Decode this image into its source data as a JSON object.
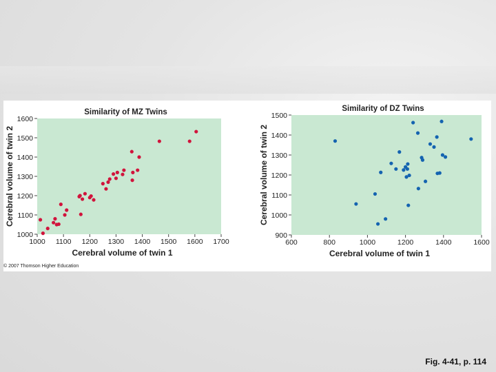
{
  "figure": {
    "caption": "Fig. 4-41, p. 114",
    "credit": "© 2007 Thomson Higher Education"
  },
  "colors": {
    "plot_background": "#c9e8d2",
    "mz_point": "#d1143c",
    "dz_point": "#1463b0"
  },
  "chart_data": [
    {
      "type": "scatter",
      "title": "Similarity of MZ Twins",
      "xlabel": "Cerebral volume of twin 1",
      "ylabel": "Cerebral volume of twin 2",
      "xlim": [
        1000,
        1700
      ],
      "ylim": [
        1000,
        1600
      ],
      "xticks": [
        1000,
        1100,
        1200,
        1300,
        1400,
        1500,
        1600,
        1700
      ],
      "yticks": [
        1000,
        1100,
        1200,
        1300,
        1400,
        1500,
        1600
      ],
      "grid": false,
      "color": "#d1143c",
      "points": [
        [
          1012,
          1075
        ],
        [
          1022,
          1005
        ],
        [
          1040,
          1030
        ],
        [
          1062,
          1060
        ],
        [
          1068,
          1080
        ],
        [
          1074,
          1050
        ],
        [
          1082,
          1052
        ],
        [
          1090,
          1155
        ],
        [
          1105,
          1100
        ],
        [
          1112,
          1125
        ],
        [
          1160,
          1195
        ],
        [
          1163,
          1200
        ],
        [
          1166,
          1103
        ],
        [
          1172,
          1182
        ],
        [
          1182,
          1210
        ],
        [
          1200,
          1190
        ],
        [
          1205,
          1198
        ],
        [
          1215,
          1178
        ],
        [
          1250,
          1262
        ],
        [
          1262,
          1235
        ],
        [
          1270,
          1270
        ],
        [
          1276,
          1286
        ],
        [
          1290,
          1312
        ],
        [
          1300,
          1290
        ],
        [
          1305,
          1320
        ],
        [
          1325,
          1310
        ],
        [
          1330,
          1332
        ],
        [
          1360,
          1428
        ],
        [
          1362,
          1280
        ],
        [
          1364,
          1320
        ],
        [
          1382,
          1332
        ],
        [
          1388,
          1400
        ],
        [
          1465,
          1482
        ],
        [
          1580,
          1482
        ],
        [
          1605,
          1532
        ]
      ]
    },
    {
      "type": "scatter",
      "title": "Similarity of DZ Twins",
      "xlabel": "Cerebral volume of twin 1",
      "ylabel": "Cerebral volume of twin 2",
      "xlim": [
        600,
        1600
      ],
      "ylim": [
        900,
        1500
      ],
      "xticks": [
        600,
        800,
        1000,
        1200,
        1400,
        1600
      ],
      "yticks": [
        900,
        1000,
        1100,
        1200,
        1300,
        1400,
        1500
      ],
      "grid": false,
      "color": "#1463b0",
      "points": [
        [
          830,
          1370
        ],
        [
          940,
          1055
        ],
        [
          1040,
          1105
        ],
        [
          1055,
          955
        ],
        [
          1070,
          1213
        ],
        [
          1095,
          980
        ],
        [
          1125,
          1258
        ],
        [
          1150,
          1230
        ],
        [
          1168,
          1315
        ],
        [
          1190,
          1225
        ],
        [
          1200,
          1240
        ],
        [
          1205,
          1190
        ],
        [
          1210,
          1230
        ],
        [
          1212,
          1255
        ],
        [
          1215,
          1048
        ],
        [
          1220,
          1198
        ],
        [
          1240,
          1462
        ],
        [
          1265,
          1410
        ],
        [
          1268,
          1132
        ],
        [
          1285,
          1287
        ],
        [
          1290,
          1275
        ],
        [
          1305,
          1168
        ],
        [
          1330,
          1355
        ],
        [
          1350,
          1340
        ],
        [
          1365,
          1390
        ],
        [
          1368,
          1208
        ],
        [
          1380,
          1210
        ],
        [
          1390,
          1468
        ],
        [
          1395,
          1300
        ],
        [
          1410,
          1290
        ],
        [
          1545,
          1380
        ]
      ]
    }
  ]
}
